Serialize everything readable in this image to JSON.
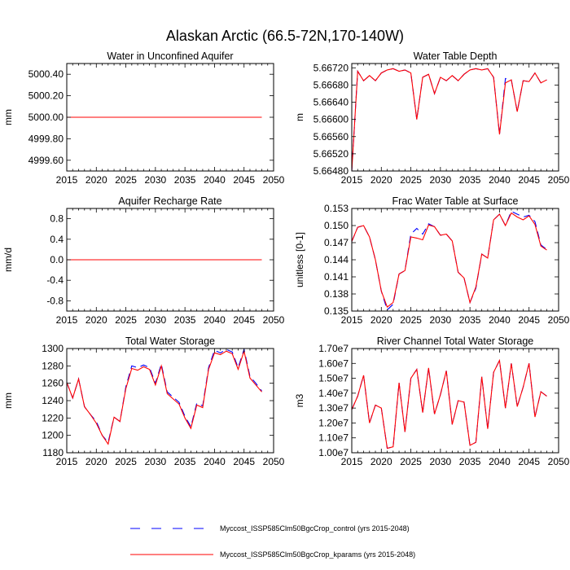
{
  "title": "Alaskan Arctic (66.5-72N,170-140W)",
  "colors": {
    "control": "#0000ff",
    "kparams": "#ff0000",
    "axis": "#000000"
  },
  "legend": [
    {
      "label": "Myccost_ISSP585Clm50BgcCrop_control (yrs 2015-2048)",
      "color": "#0000ff",
      "dash": true
    },
    {
      "label": "Myccost_ISSP585Clm50BgcCrop_kparams (yrs 2015-2048)",
      "color": "#ff0000",
      "dash": false
    }
  ],
  "chart_data": [
    {
      "type": "line",
      "title": "Water in Unconfined Aquifer",
      "ylabel": "mm",
      "xlim": [
        2015,
        2050
      ],
      "ylim": [
        4999.5,
        5000.5
      ],
      "xticks": [
        "2015",
        "2020",
        "2025",
        "2030",
        "2035",
        "2040",
        "2045",
        "2050"
      ],
      "yticks": [
        {
          "v": 4999.6,
          "t": "4999.60"
        },
        {
          "v": 4999.8,
          "t": "4999.80"
        },
        {
          "v": 5000.0,
          "t": "5000.00"
        },
        {
          "v": 5000.2,
          "t": "5000.20"
        },
        {
          "v": 5000.4,
          "t": "5000.40"
        }
      ],
      "x": [
        2015,
        2048
      ],
      "series": [
        {
          "name": "Myccost_ISSP585Clm50BgcCrop_control",
          "values": [
            5000.0,
            5000.0
          ]
        },
        {
          "name": "Myccost_ISSP585Clm50BgcCrop_kparams",
          "values": [
            5000.0,
            5000.0
          ]
        }
      ]
    },
    {
      "type": "line",
      "title": "Water Table Depth",
      "ylabel": "m",
      "xlim": [
        2015,
        2050
      ],
      "ylim": [
        5.6648,
        5.6673
      ],
      "xticks": [
        "2015",
        "2020",
        "2025",
        "2030",
        "2035",
        "2040",
        "2045",
        "2050"
      ],
      "yticks": [
        {
          "v": 5.6648,
          "t": "5.66480"
        },
        {
          "v": 5.6652,
          "t": "5.66520"
        },
        {
          "v": 5.6656,
          "t": "5.66560"
        },
        {
          "v": 5.666,
          "t": "5.66600"
        },
        {
          "v": 5.6664,
          "t": "5.66640"
        },
        {
          "v": 5.6668,
          "t": "5.66680"
        },
        {
          "v": 5.6672,
          "t": "5.66720"
        }
      ],
      "x": [
        2015,
        2016,
        2017,
        2018,
        2019,
        2020,
        2021,
        2022,
        2023,
        2024,
        2025,
        2026,
        2027,
        2028,
        2029,
        2030,
        2031,
        2032,
        2033,
        2034,
        2035,
        2036,
        2037,
        2038,
        2039,
        2040,
        2041,
        2042,
        2043,
        2044,
        2045,
        2046,
        2047,
        2048
      ],
      "series": [
        {
          "name": "Myccost_ISSP585Clm50BgcCrop_control",
          "values": [
            5.6648,
            5.66712,
            5.6669,
            5.66702,
            5.6669,
            5.66708,
            5.66715,
            5.66718,
            5.66712,
            5.66715,
            5.66708,
            5.666,
            5.66698,
            5.66705,
            5.6666,
            5.66698,
            5.6669,
            5.66702,
            5.6669,
            5.66705,
            5.66715,
            5.66718,
            5.66715,
            5.66718,
            5.66698,
            5.66565,
            5.66695,
            5.66692,
            5.66618,
            5.6669,
            5.66688,
            5.66708,
            5.66685,
            5.66692
          ]
        },
        {
          "name": "Myccost_ISSP585Clm50BgcCrop_kparams",
          "values": [
            5.6648,
            5.66712,
            5.6669,
            5.66702,
            5.6669,
            5.66708,
            5.66715,
            5.66718,
            5.66712,
            5.66715,
            5.66708,
            5.666,
            5.66698,
            5.66705,
            5.6666,
            5.66698,
            5.6669,
            5.66702,
            5.6669,
            5.66705,
            5.66715,
            5.66718,
            5.66715,
            5.66718,
            5.66698,
            5.66565,
            5.66685,
            5.66692,
            5.66618,
            5.6669,
            5.66688,
            5.66708,
            5.66685,
            5.66692
          ]
        }
      ]
    },
    {
      "type": "line",
      "title": "Aquifer Recharge Rate",
      "ylabel": "mm/d",
      "xlim": [
        2015,
        2050
      ],
      "ylim": [
        -1.0,
        1.0
      ],
      "xticks": [
        "2015",
        "2020",
        "2025",
        "2030",
        "2035",
        "2040",
        "2045",
        "2050"
      ],
      "yticks": [
        {
          "v": -0.8,
          "t": "-0.8"
        },
        {
          "v": -0.4,
          "t": "-0.4"
        },
        {
          "v": 0.0,
          "t": "0.0"
        },
        {
          "v": 0.4,
          "t": "0.4"
        },
        {
          "v": 0.8,
          "t": "0.8"
        }
      ],
      "x": [
        2015,
        2048
      ],
      "series": [
        {
          "name": "Myccost_ISSP585Clm50BgcCrop_control",
          "values": [
            0.0,
            0.0
          ]
        },
        {
          "name": "Myccost_ISSP585Clm50BgcCrop_kparams",
          "values": [
            0.0,
            0.0
          ]
        }
      ]
    },
    {
      "type": "line",
      "title": "Frac Water Table at Surface",
      "ylabel": "unitless [0-1]",
      "xlim": [
        2015,
        2050
      ],
      "ylim": [
        0.135,
        0.153
      ],
      "xticks": [
        "2015",
        "2020",
        "2025",
        "2030",
        "2035",
        "2040",
        "2045",
        "2050"
      ],
      "yticks": [
        {
          "v": 0.135,
          "t": "0.135"
        },
        {
          "v": 0.138,
          "t": "0.138"
        },
        {
          "v": 0.141,
          "t": "0.141"
        },
        {
          "v": 0.144,
          "t": "0.144"
        },
        {
          "v": 0.147,
          "t": "0.147"
        },
        {
          "v": 0.15,
          "t": "0.150"
        },
        {
          "v": 0.153,
          "t": "0.153"
        }
      ],
      "x": [
        2015,
        2016,
        2017,
        2018,
        2019,
        2020,
        2021,
        2022,
        2023,
        2024,
        2025,
        2026,
        2027,
        2028,
        2029,
        2030,
        2031,
        2032,
        2033,
        2034,
        2035,
        2036,
        2037,
        2038,
        2039,
        2040,
        2041,
        2042,
        2043,
        2044,
        2045,
        2046,
        2047,
        2048
      ],
      "series": [
        {
          "name": "Myccost_ISSP585Clm50BgcCrop_control",
          "values": [
            0.1472,
            0.1497,
            0.15,
            0.148,
            0.144,
            0.1385,
            0.1352,
            0.1362,
            0.1415,
            0.1421,
            0.1485,
            0.1495,
            0.1485,
            0.1503,
            0.1498,
            0.1483,
            0.1485,
            0.1473,
            0.1418,
            0.1408,
            0.1365,
            0.139,
            0.145,
            0.1443,
            0.151,
            0.152,
            0.15,
            0.1525,
            0.152,
            0.1515,
            0.1518,
            0.1507,
            0.1466,
            0.1458
          ]
        },
        {
          "name": "Myccost_ISSP585Clm50BgcCrop_kparams",
          "values": [
            0.1472,
            0.1497,
            0.15,
            0.148,
            0.144,
            0.1385,
            0.1357,
            0.1365,
            0.1415,
            0.1421,
            0.148,
            0.1478,
            0.1475,
            0.1501,
            0.1498,
            0.1483,
            0.1485,
            0.1473,
            0.1418,
            0.1408,
            0.1365,
            0.1392,
            0.145,
            0.1443,
            0.151,
            0.152,
            0.15,
            0.1522,
            0.1515,
            0.151,
            0.1517,
            0.1502,
            0.1464,
            0.1457
          ]
        }
      ]
    },
    {
      "type": "line",
      "title": "Total Water Storage",
      "ylabel": "mm",
      "xlim": [
        2015,
        2050
      ],
      "ylim": [
        1180,
        1300
      ],
      "xticks": [
        "2015",
        "2020",
        "2025",
        "2030",
        "2035",
        "2040",
        "2045",
        "2050"
      ],
      "yticks": [
        {
          "v": 1180,
          "t": "1180"
        },
        {
          "v": 1200,
          "t": "1200"
        },
        {
          "v": 1220,
          "t": "1220"
        },
        {
          "v": 1240,
          "t": "1240"
        },
        {
          "v": 1260,
          "t": "1260"
        },
        {
          "v": 1280,
          "t": "1280"
        },
        {
          "v": 1300,
          "t": "1300"
        }
      ],
      "x": [
        2015,
        2016,
        2017,
        2018,
        2019,
        2020,
        2021,
        2022,
        2023,
        2024,
        2025,
        2026,
        2027,
        2028,
        2029,
        2030,
        2031,
        2032,
        2033,
        2034,
        2035,
        2036,
        2037,
        2038,
        2039,
        2040,
        2041,
        2042,
        2043,
        2044,
        2045,
        2046,
        2047,
        2048
      ],
      "series": [
        {
          "name": "Myccost_ISSP585Clm50BgcCrop_control",
          "values": [
            1261,
            1243,
            1265,
            1233,
            1224,
            1216,
            1200,
            1192,
            1221,
            1216,
            1256,
            1280,
            1278,
            1281,
            1278,
            1260,
            1282,
            1250,
            1244,
            1238,
            1222,
            1210,
            1237,
            1234,
            1278,
            1298,
            1295,
            1299,
            1296,
            1278,
            1299,
            1268,
            1260,
            1251
          ]
        },
        {
          "name": "Myccost_ISSP585Clm50BgcCrop_kparams",
          "values": [
            1261,
            1243,
            1265,
            1233,
            1224,
            1214,
            1200,
            1190,
            1221,
            1216,
            1254,
            1277,
            1275,
            1279,
            1276,
            1258,
            1280,
            1248,
            1242,
            1236,
            1220,
            1208,
            1235,
            1232,
            1276,
            1295,
            1293,
            1297,
            1294,
            1276,
            1297,
            1266,
            1258,
            1250
          ]
        }
      ]
    },
    {
      "type": "line",
      "title": "River Channel Total Water Storage",
      "ylabel": "m3",
      "xlim": [
        2015,
        2050
      ],
      "ylim": [
        10000000,
        17000000
      ],
      "xticks": [
        "2015",
        "2020",
        "2025",
        "2030",
        "2035",
        "2040",
        "2045",
        "2050"
      ],
      "yticks": [
        {
          "v": 10000000,
          "t": "1.00e7"
        },
        {
          "v": 11000000,
          "t": "1.10e7"
        },
        {
          "v": 12000000,
          "t": "1.20e7"
        },
        {
          "v": 13000000,
          "t": "1.30e7"
        },
        {
          "v": 14000000,
          "t": "1.40e7"
        },
        {
          "v": 15000000,
          "t": "1.50e7"
        },
        {
          "v": 16000000,
          "t": "1.60e7"
        },
        {
          "v": 17000000,
          "t": "1.70e7"
        }
      ],
      "x": [
        2015,
        2016,
        2017,
        2018,
        2019,
        2020,
        2021,
        2022,
        2023,
        2024,
        2025,
        2026,
        2027,
        2028,
        2029,
        2030,
        2031,
        2032,
        2033,
        2034,
        2035,
        2036,
        2037,
        2038,
        2039,
        2040,
        2041,
        2042,
        2043,
        2044,
        2045,
        2046,
        2047,
        2048
      ],
      "series": [
        {
          "name": "Myccost_ISSP585Clm50BgcCrop_control",
          "values": [
            12900000,
            13800000,
            15200000,
            12000000,
            13200000,
            13000000,
            10300000,
            10400000,
            14700000,
            11400000,
            15000000,
            15600000,
            12700000,
            15700000,
            12600000,
            13900000,
            15500000,
            11900000,
            13500000,
            13400000,
            10500000,
            10700000,
            15100000,
            11600000,
            15400000,
            16200000,
            13000000,
            16000000,
            13100000,
            14400000,
            16000000,
            12400000,
            14100000,
            13800000
          ]
        },
        {
          "name": "Myccost_ISSP585Clm50BgcCrop_kparams",
          "values": [
            12900000,
            13800000,
            15200000,
            12000000,
            13200000,
            13000000,
            10300000,
            10400000,
            14700000,
            11400000,
            15000000,
            15600000,
            12700000,
            15700000,
            12600000,
            13900000,
            15500000,
            11900000,
            13500000,
            13400000,
            10500000,
            10700000,
            15100000,
            11600000,
            15400000,
            16200000,
            13000000,
            16000000,
            13100000,
            14400000,
            16000000,
            12400000,
            14100000,
            13800000
          ]
        }
      ]
    }
  ]
}
